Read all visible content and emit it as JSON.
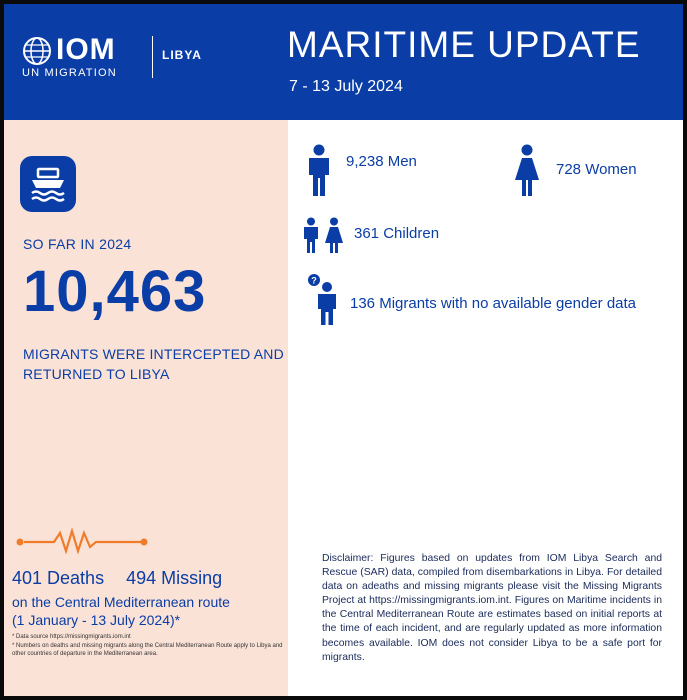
{
  "header": {
    "logo_text": "IOM",
    "logo_subtitle": "UN MIGRATION",
    "country": "LIBYA",
    "title": "MARITIME UPDATE",
    "dates": "7 - 13 July 2024"
  },
  "summary": {
    "icon": "boat-icon",
    "so_far": "SO FAR IN 2024",
    "total": "10,463",
    "description": "MIGRANTS WERE INTERCEPTED AND RETURNED TO LIBYA"
  },
  "breakdown": {
    "men": "9,238 Men",
    "women": "728 Women",
    "children": "361 Children",
    "unknown": "136 Migrants with no available gender data"
  },
  "casualties": {
    "icon": "heartbeat-icon",
    "deaths": "401 Deaths",
    "missing": "494 Missing",
    "route_line1": "on the Central Mediterranean route",
    "route_line2": "(1 January - 13 July 2024)*",
    "note1": "*   Data source https://missingmigrants.iom.int",
    "note2": "*   Numbers on deaths and missing migrants along the Central Mediterranean Route apply to Libya and other countries of departure in the Mediterranean area."
  },
  "disclaimer": "Disclaimer: Figures based on updates from IOM Libya Search and Rescue (SAR) data, compiled from disembarkations in Libya. For detailed data on adeaths and missing migrants please visit the Missing Migrants Project at https://missingmigrants.iom.int. Figures on Maritime incidents in the Central Mediterranean Route are estimates based on initial reports at the time of each incident, and are regularly updated as more information becomes available. IOM does not consider Libya to be a safe port for migrants.",
  "colors": {
    "brand_blue": "#0a3da6",
    "accent_orange": "#f07c2a",
    "left_panel": "#fbe2d6"
  }
}
